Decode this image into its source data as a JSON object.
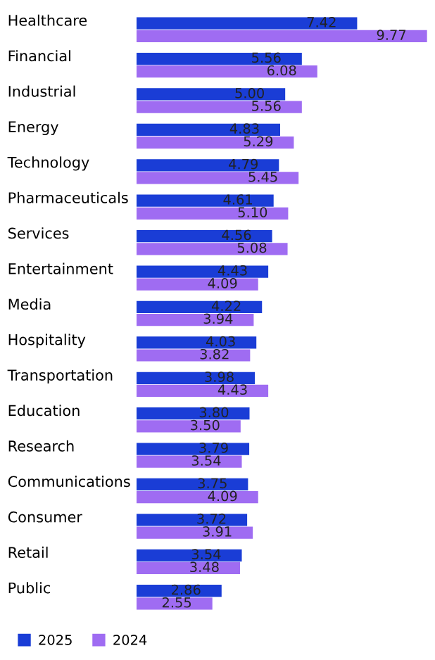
{
  "chart_data": {
    "type": "bar",
    "orientation": "horizontal",
    "categories": [
      "Healthcare",
      "Financial",
      "Industrial",
      "Energy",
      "Technology",
      "Pharmaceuticals",
      "Services",
      "Entertainment",
      "Media",
      "Hospitality",
      "Transportation",
      "Education",
      "Research",
      "Communications",
      "Consumer",
      "Retail",
      "Public"
    ],
    "series": [
      {
        "name": "2025",
        "color": "#1a3dd6",
        "values": [
          7.42,
          5.56,
          5.0,
          4.83,
          4.79,
          4.61,
          4.56,
          4.43,
          4.22,
          4.03,
          3.98,
          3.8,
          3.79,
          3.75,
          3.72,
          3.54,
          2.86
        ],
        "value_labels": [
          "7.42",
          "5.56",
          "5.00",
          "4.83",
          "4.79",
          "4.61",
          "4.56",
          "4.43",
          "4.22",
          "4.03",
          "3.98",
          "3.80",
          "3.79",
          "3.75",
          "3.72",
          "3.54",
          "2.86"
        ]
      },
      {
        "name": "2024",
        "color": "#9f6cf2",
        "values": [
          9.77,
          6.08,
          5.56,
          5.29,
          5.45,
          5.1,
          5.08,
          4.09,
          3.94,
          3.82,
          4.43,
          3.5,
          3.54,
          4.09,
          3.91,
          3.48,
          2.55
        ],
        "value_labels": [
          "9.77",
          "6.08",
          "5.56",
          "5.29",
          "5.45",
          "5.10",
          "5.08",
          "4.09",
          "3.94",
          "3.82",
          "4.43",
          "3.50",
          "3.54",
          "4.09",
          "3.91",
          "3.48",
          "2.55"
        ]
      }
    ],
    "legend": "bottom left",
    "tick_labels": "y"
  }
}
